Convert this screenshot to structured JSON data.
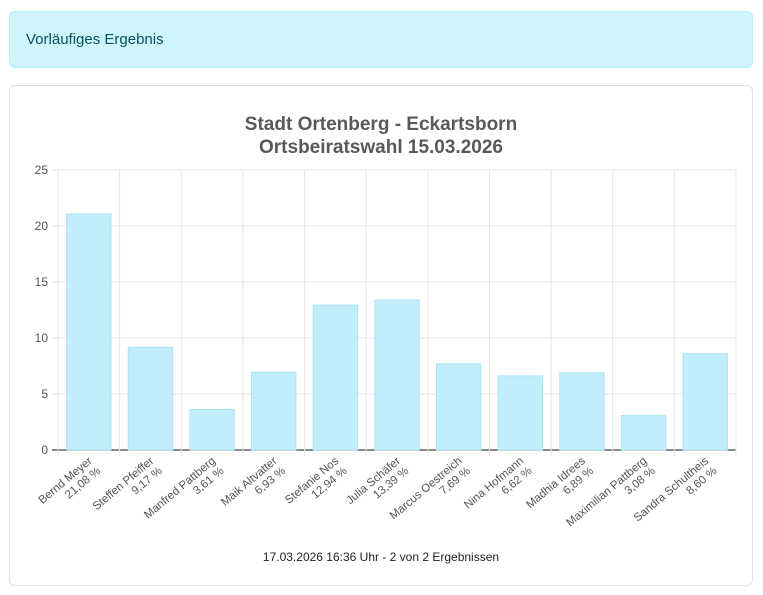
{
  "alert": {
    "text": "Vorläufiges Ergebnis"
  },
  "chart_data": {
    "type": "bar",
    "title_lines": [
      "Stadt Ortenberg - Eckartsborn",
      "Ortsbeiratswahl 15.03.2026"
    ],
    "categories": [
      "Bernd Meyer",
      "Steffen Pfeiffer",
      "Manfred Pattberg",
      "Maik Altvatter",
      "Stefanie Nos",
      "Julia Schäfer",
      "Marcus Oestreich",
      "Nina Hofmann",
      "Madhia Idrees",
      "Maximilian Pattberg",
      "Sandra Schultheis"
    ],
    "value_labels": [
      "21,08 %",
      "9,17 %",
      "3,61 %",
      "6,93 %",
      "12,94 %",
      "13,39 %",
      "7,69 %",
      "6,62 %",
      "6,89 %",
      "3,08 %",
      "8,60 %"
    ],
    "values": [
      21.08,
      9.17,
      3.61,
      6.93,
      12.94,
      13.39,
      7.69,
      6.62,
      6.89,
      3.08,
      8.6
    ],
    "ylim": [
      0,
      25
    ],
    "yticks": [
      0,
      5,
      10,
      15,
      20,
      25
    ],
    "grid": true,
    "bar_color": "#c2eefb",
    "bar_border_color": "#a9e4f6"
  },
  "footer": {
    "text": "17.03.2026 16:36 Uhr - 2 von 2 Ergebnissen"
  }
}
